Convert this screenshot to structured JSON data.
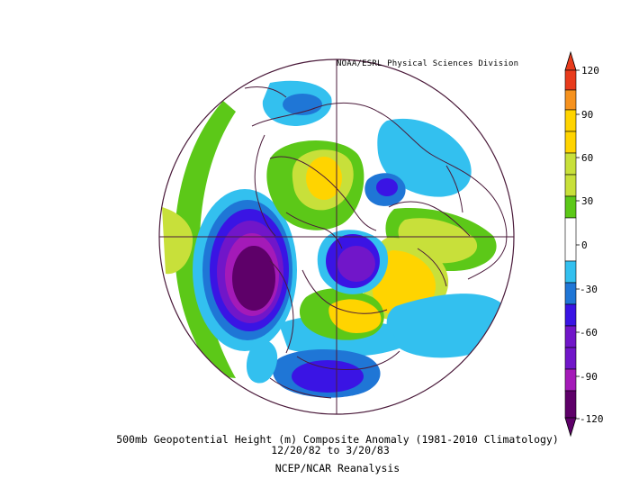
{
  "credit": "NOAA/ESRL Physical Sciences Division",
  "caption": {
    "line1": "500mb Geopotential Height (m) Composite Anomaly (1981-2010 Climatology)",
    "line2": "12/20/82  to 3/20/83",
    "line3": "NCEP/NCAR Reanalysis"
  },
  "colorbar": {
    "labels": [
      "120",
      "90",
      "60",
      "30",
      "0",
      "-30",
      "-60",
      "-90",
      "-120"
    ],
    "colors": [
      "#e83b1c",
      "#f6921e",
      "#ffd400",
      "#c8e03a",
      "#5cc818",
      "#ffffff",
      "#33c0ef",
      "#1f76d6",
      "#3a14e4",
      "#7116c9",
      "#a41ab8",
      "#5e0069"
    ]
  },
  "palette": {
    "neg150": "#5e0069",
    "neg120": "#a41ab8",
    "neg90": "#7116c9",
    "neg60": "#3a14e4",
    "neg30": "#1f76d6",
    "neg15": "#33c0ef",
    "pos15": "#5cc818",
    "pos30": "#c8e03a",
    "pos60": "#ffd400",
    "pos90": "#f6921e",
    "line": "#4a1a3a"
  }
}
